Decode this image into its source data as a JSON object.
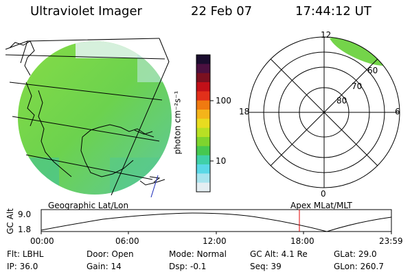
{
  "header": {
    "title": "Ultraviolet Imager",
    "date": "22 Feb 07",
    "time": "17:44:12 UT"
  },
  "colorbar": {
    "label": "photon cm⁻²s⁻¹",
    "ticks": [
      "100",
      "10"
    ],
    "colors": [
      "#1a0d2e",
      "#4b1040",
      "#7b1020",
      "#c21018",
      "#e2301a",
      "#f07a10",
      "#f4b41a",
      "#e8dc20",
      "#b8e024",
      "#7ed42e",
      "#46c850",
      "#40d0a8",
      "#5ad8e6",
      "#a8e4ee",
      "#e4eef2"
    ]
  },
  "left_panel": {
    "label": "Geographic Lat/Lon",
    "fill_color": "#74d44a"
  },
  "polar_panel": {
    "label": "Apex  MLat/MLT",
    "hour_labels": {
      "top": "12",
      "right": "6",
      "bottom": "0",
      "left": "18"
    },
    "lat_labels": [
      "60",
      "70",
      "80"
    ]
  },
  "altitude_plot": {
    "ylabel": "GC Alt",
    "yticks": [
      "9.0",
      "1.8"
    ],
    "xticks": [
      "00:00",
      "06:00",
      "12:00",
      "18:00",
      "23:59"
    ],
    "marker_color": "#e00000"
  },
  "info": {
    "filter": {
      "label": "Flt:",
      "value": "LBHL"
    },
    "ip": {
      "label": "IP:",
      "value": "36.0"
    },
    "door": {
      "label": "Door:",
      "value": "Open"
    },
    "gain": {
      "label": "Gain:",
      "value": "14"
    },
    "mode": {
      "label": "Mode:",
      "value": "Normal"
    },
    "dsp": {
      "label": "Dsp:",
      "value": "-0.1"
    },
    "gc_alt": {
      "label": "GC Alt:",
      "value": "4.1 Re"
    },
    "seq": {
      "label": "Seq:",
      "value": "39"
    },
    "glat": {
      "label": "GLat:",
      "value": "29.0"
    },
    "glon": {
      "label": "GLon:",
      "value": "260.7"
    }
  }
}
